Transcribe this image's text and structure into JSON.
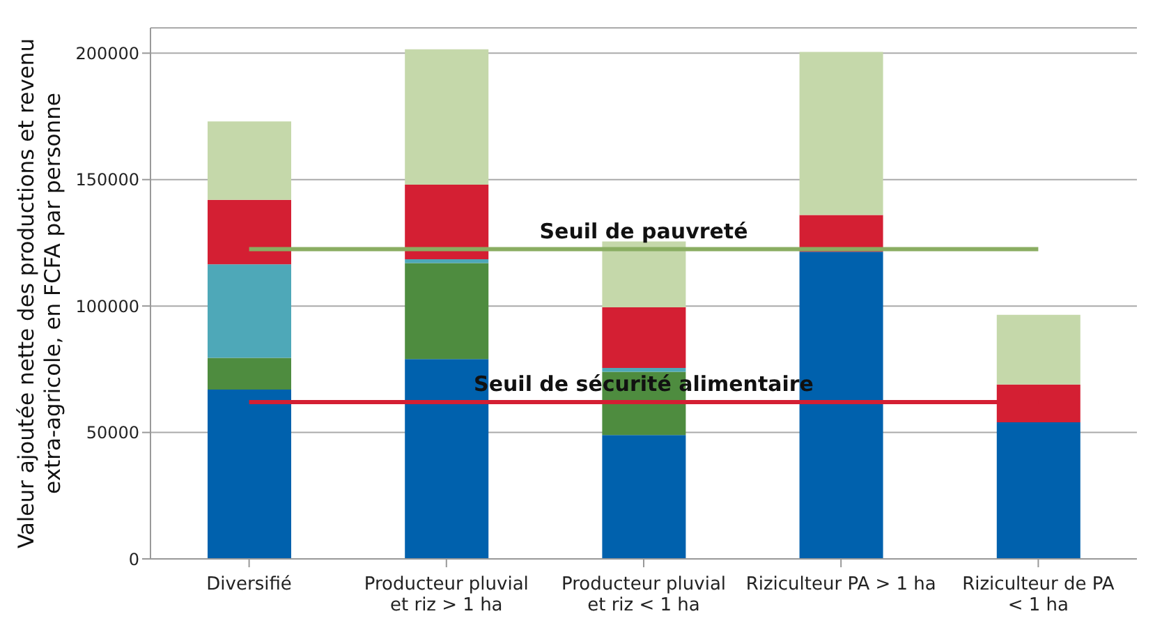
{
  "chart_data": {
    "type": "bar",
    "stacked": true,
    "ylabel": "Valeur ajoutée nette des productions et revenu extra-agricole, en FCFA par personne",
    "categories": [
      "Diversifié",
      "Producteur pluvial et riz > 1 ha",
      "Producteur pluvial et riz < 1 ha",
      "Riziculteur PA > 1 ha",
      "Riziculteur de PA < 1 ha"
    ],
    "series": [
      {
        "color": "#0061ad",
        "values": [
          67000,
          79000,
          49000,
          121500,
          54000
        ]
      },
      {
        "color": "#4e8c3f",
        "values": [
          12500,
          38000,
          25000,
          0,
          0
        ]
      },
      {
        "color": "#4ea8b8",
        "values": [
          37000,
          1500,
          1500,
          0,
          0
        ]
      },
      {
        "color": "#d41f33",
        "values": [
          25500,
          29500,
          24000,
          14500,
          15000
        ]
      },
      {
        "color": "#c5d8aa",
        "values": [
          31000,
          53500,
          26000,
          64500,
          27500
        ]
      }
    ],
    "ylim": [
      0,
      210000
    ],
    "yticks": [
      0,
      50000,
      100000,
      150000,
      200000
    ],
    "grid": "y",
    "legend": false,
    "ref_lines": [
      {
        "axis": "y",
        "value": 122500,
        "label": "Seuil de pauvreté",
        "color": "#8aad62"
      },
      {
        "axis": "y",
        "value": 62000,
        "label": "Seuil de sécurité alimentaire",
        "color": "#d41f33"
      }
    ]
  }
}
